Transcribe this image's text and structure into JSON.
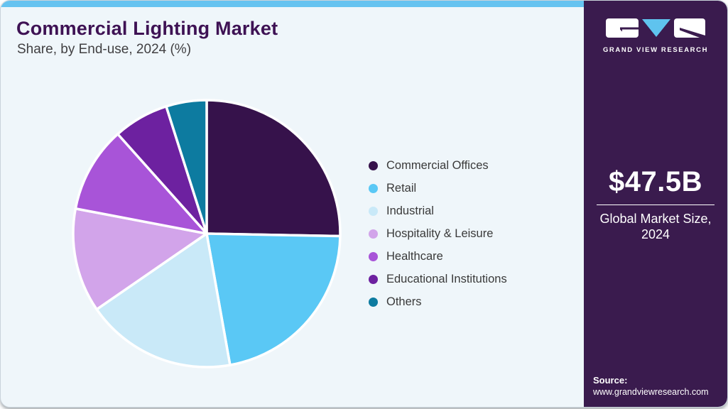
{
  "header": {
    "title": "Commercial Lighting Market",
    "subtitle": "Share, by End-use, 2024 (%)"
  },
  "chart_data": {
    "type": "pie",
    "title": "Commercial Lighting Market Share, by End-use, 2024 (%)",
    "unit": "%",
    "start_angle_deg": 0,
    "direction": "clockwise",
    "legend_position": "right",
    "labels": [
      "Commercial Offices",
      "Retail",
      "Industrial",
      "Hospitality & Leisure",
      "Healthcare",
      "Educational Institutions",
      "Others"
    ],
    "values": [
      25.3,
      21.9,
      18.2,
      12.6,
      10.4,
      6.7,
      4.9
    ],
    "colors": [
      "#36124b",
      "#5ac8f5",
      "#c9e9f8",
      "#d2a4ea",
      "#a854d8",
      "#6d21a0",
      "#0d7ba0"
    ]
  },
  "sidebar": {
    "logo": {
      "brand": "GRAND VIEW RESEARCH",
      "triangle_color": "#5fc3ee"
    },
    "market_size_value": "$47.5B",
    "market_size_label_line1": "Global Market Size,",
    "market_size_label_line2": "2024",
    "source_label": "Source:",
    "source_url": "www.grandviewresearch.com"
  },
  "colors": {
    "topbar_accent": "#66c3f0",
    "sidebar_background": "#3a1b4e",
    "card_background": "#eff6fa",
    "title_color": "#3e1254",
    "pie_slice_stroke": "#ffffff"
  }
}
